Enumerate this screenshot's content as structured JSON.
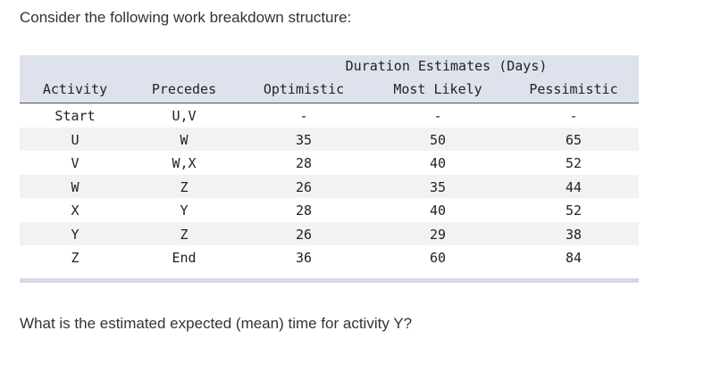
{
  "intro": "Consider the following work breakdown structure:",
  "table": {
    "group_header": "Duration Estimates (Days)",
    "columns": [
      "Activity",
      "Precedes",
      "Optimistic",
      "Most Likely",
      "Pessimistic"
    ],
    "rows": [
      [
        "Start",
        "U,V",
        "-",
        "-",
        "-"
      ],
      [
        "U",
        "W",
        35,
        50,
        65
      ],
      [
        "V",
        "W,X",
        28,
        40,
        52
      ],
      [
        "W",
        "Z",
        26,
        35,
        44
      ],
      [
        "X",
        "Y",
        28,
        40,
        52
      ],
      [
        "Y",
        "Z",
        26,
        29,
        38
      ],
      [
        "Z",
        "End",
        36,
        60,
        84
      ]
    ]
  },
  "question": "What is the estimated expected (mean) time for activity Y?"
}
